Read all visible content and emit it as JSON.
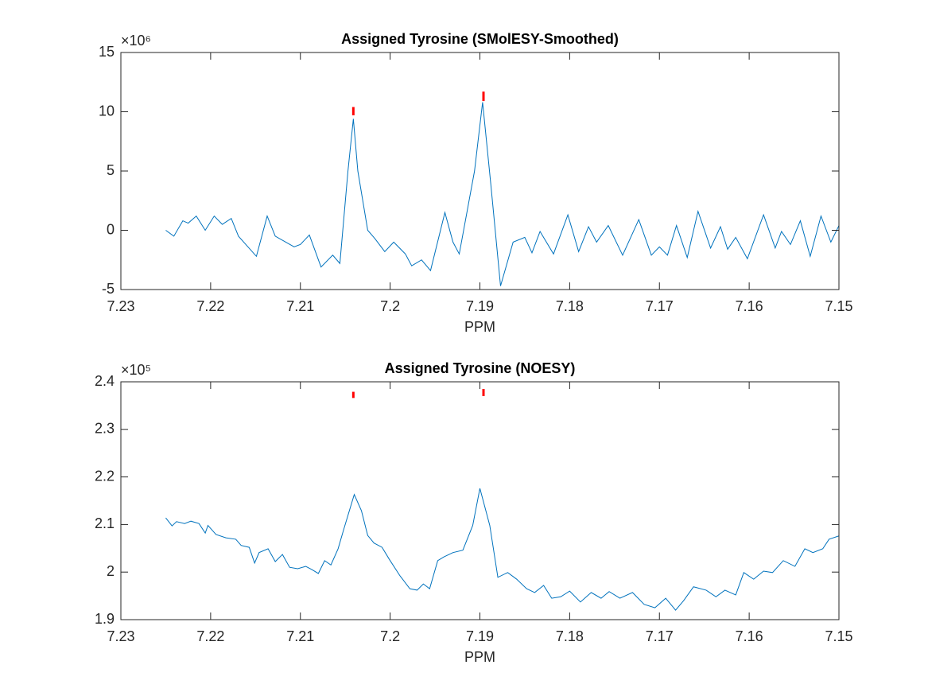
{
  "chart_data": [
    {
      "type": "line",
      "title": "Assigned Tyrosine (SMolESY-Smoothed)",
      "xlabel": "PPM",
      "y_multiplier": "×10⁶",
      "xlim": [
        7.23,
        7.15
      ],
      "xticks": [
        7.23,
        7.22,
        7.21,
        7.2,
        7.19,
        7.18,
        7.17,
        7.16,
        7.15
      ],
      "ylim": [
        -5,
        15
      ],
      "yticks": [
        -5,
        0,
        5,
        10,
        15
      ],
      "color": "#0072bd",
      "x": [
        7.225,
        7.2241,
        7.2231,
        7.2225,
        7.2216,
        7.2206,
        7.2196,
        7.2187,
        7.2177,
        7.2169,
        7.2149,
        7.2137,
        7.2128,
        7.2107,
        7.21,
        7.209,
        7.2077,
        7.2064,
        7.2056,
        7.2047,
        7.2041,
        7.2036,
        7.2025,
        7.2017,
        7.2006,
        7.1996,
        7.1983,
        7.1976,
        7.1965,
        7.1955,
        7.1939,
        7.193,
        7.1923,
        7.1906,
        7.1897,
        7.1888,
        7.1877,
        7.1863,
        7.185,
        7.1842,
        7.1833,
        7.1818,
        7.1802,
        7.179,
        7.1779,
        7.177,
        7.1757,
        7.1741,
        7.1723,
        7.1709,
        7.17,
        7.1691,
        7.1681,
        7.1669,
        7.1657,
        7.1643,
        7.1632,
        7.1624,
        7.1615,
        7.1602,
        7.1584,
        7.1571,
        7.1564,
        7.1554,
        7.1543,
        7.1532,
        7.152,
        7.1509,
        7.15
      ],
      "values": [
        0,
        -0.5,
        0.8,
        0.6,
        1.2,
        0,
        1.2,
        0.5,
        1.0,
        -0.5,
        -2.2,
        1.2,
        -0.5,
        -1.4,
        -1.2,
        -0.4,
        -3.1,
        -2.1,
        -2.8,
        5,
        9.4,
        5,
        0,
        -0.7,
        -1.8,
        -1,
        -2,
        -3,
        -2.5,
        -3.4,
        1.5,
        -1,
        -2,
        5,
        10.8,
        4,
        -4.7,
        -1,
        -0.6,
        -1.9,
        -0.1,
        -2,
        1.3,
        -1.8,
        0.3,
        -1,
        0.4,
        -2.1,
        0.9,
        -2.1,
        -1.4,
        -2.1,
        0.4,
        -2.3,
        1.6,
        -1.5,
        0.3,
        -1.6,
        -0.6,
        -2.4,
        1.3,
        -1.5,
        -0.1,
        -1.2,
        0.8,
        -2.2,
        1.2,
        -1,
        0.4
      ],
      "markers": {
        "color": "#ff0000",
        "x": [
          7.2041,
          7.1896
        ],
        "low": [
          9.7,
          10.9
        ],
        "high": [
          10.4,
          11.7
        ]
      }
    },
    {
      "type": "line",
      "title": "Assigned Tyrosine (NOESY)",
      "xlabel": "PPM",
      "y_multiplier": "×10⁵",
      "xlim": [
        7.23,
        7.15
      ],
      "xticks": [
        7.23,
        7.22,
        7.21,
        7.2,
        7.19,
        7.18,
        7.17,
        7.16,
        7.15
      ],
      "ylim": [
        1.9,
        2.4
      ],
      "yticks": [
        1.9,
        2,
        2.1,
        2.2,
        2.3,
        2.4
      ],
      "color": "#0072bd",
      "x": [
        7.225,
        7.2243,
        7.2238,
        7.2229,
        7.2222,
        7.2213,
        7.2206,
        7.2203,
        7.2194,
        7.2183,
        7.2172,
        7.2166,
        7.2157,
        7.2151,
        7.2146,
        7.2136,
        7.2128,
        7.212,
        7.2112,
        7.2103,
        7.2094,
        7.2087,
        7.208,
        7.2073,
        7.2066,
        7.2058,
        7.2052,
        7.204,
        7.2032,
        7.2025,
        7.2018,
        7.2009,
        7.2001,
        7.1989,
        7.1978,
        7.197,
        7.1963,
        7.1956,
        7.1947,
        7.194,
        7.193,
        7.1919,
        7.1908,
        7.19,
        7.1889,
        7.188,
        7.1869,
        7.1859,
        7.1848,
        7.1839,
        7.1829,
        7.182,
        7.181,
        7.18,
        7.1788,
        7.1776,
        7.1765,
        7.1756,
        7.1744,
        7.173,
        7.1717,
        7.1705,
        7.1693,
        7.1682,
        7.1673,
        7.1662,
        7.1648,
        7.1637,
        7.1627,
        7.1615,
        7.1606,
        7.1595,
        7.1584,
        7.1574,
        7.1562,
        7.1549,
        7.1538,
        7.1529,
        7.1518,
        7.1511,
        7.15
      ],
      "values": [
        2.114,
        2.097,
        2.106,
        2.102,
        2.107,
        2.102,
        2.082,
        2.098,
        2.079,
        2.072,
        2.069,
        2.056,
        2.052,
        2.019,
        2.041,
        2.049,
        2.022,
        2.037,
        2.01,
        2.007,
        2.012,
        2.005,
        1.997,
        2.024,
        2.015,
        2.049,
        2.088,
        2.163,
        2.129,
        2.077,
        2.061,
        2.052,
        2.027,
        1.992,
        1.965,
        1.962,
        1.975,
        1.965,
        2.024,
        2.032,
        2.041,
        2.046,
        2.098,
        2.176,
        2.098,
        1.989,
        1.999,
        1.985,
        1.965,
        1.957,
        1.972,
        1.945,
        1.948,
        1.96,
        1.937,
        1.957,
        1.945,
        1.959,
        1.945,
        1.957,
        1.932,
        1.925,
        1.945,
        1.92,
        1.94,
        1.969,
        1.962,
        1.948,
        1.962,
        1.952,
        1.999,
        1.985,
        2.002,
        1.999,
        2.024,
        2.012,
        2.049,
        2.041,
        2.049,
        2.069,
        2.076
      ],
      "markers": {
        "color": "#ff0000",
        "x": [
          7.2041,
          7.1896
        ],
        "low": [
          2.366,
          2.37
        ],
        "high": [
          2.379,
          2.385
        ]
      }
    }
  ]
}
